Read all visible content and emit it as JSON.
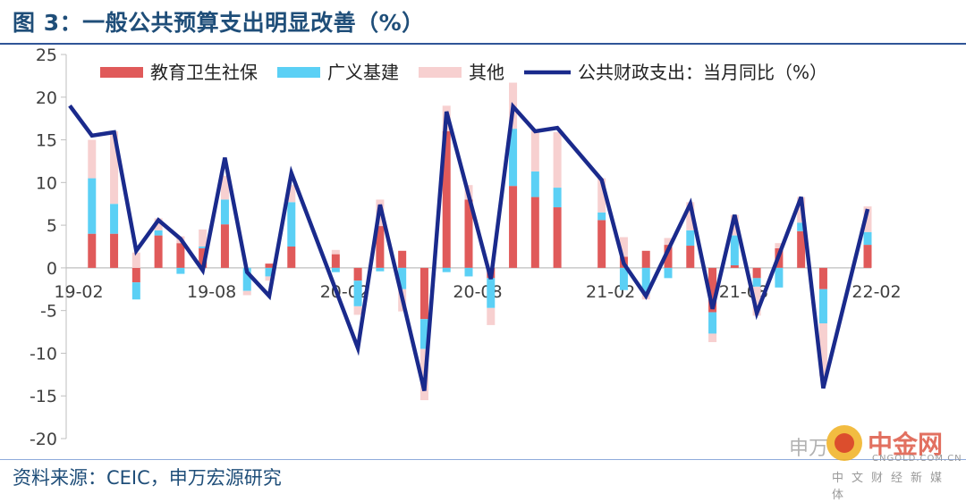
{
  "title": "图 3：一般公共预算支出明显改善（%）",
  "source": "资料来源：CEIC，申万宏源研究",
  "watermark": {
    "prefix": "申万",
    "site": "中金网",
    "site_url": "CNGOLD.COM.CN",
    "site_sub": "中文财经新媒体"
  },
  "colors": {
    "edu": "#e05a5a",
    "infra": "#5bd0f5",
    "other": "#f7d0d0",
    "line": "#1a2a8c",
    "axis": "#bfbfbf",
    "text": "#1f4e79"
  },
  "chart_data": {
    "type": "bar",
    "stacked": true,
    "ylim": [
      -20,
      25
    ],
    "yticks": [
      25,
      20,
      15,
      10,
      5,
      0,
      -5,
      -10,
      -15,
      -20
    ],
    "xtick_labels": [
      "19-02",
      "19-08",
      "20-02",
      "20-08",
      "21-02",
      "21-08",
      "22-02"
    ],
    "xtick_index": [
      0,
      6,
      12,
      18,
      24,
      30,
      36
    ],
    "legend_position": "top",
    "categories": [
      "19-02",
      "19-03",
      "19-04",
      "19-05",
      "19-06",
      "19-07",
      "19-08",
      "19-09",
      "19-10",
      "19-11",
      "19-12",
      "20-01",
      "20-02",
      "20-03",
      "20-04",
      "20-05",
      "20-06",
      "20-07",
      "20-08",
      "20-09",
      "20-10",
      "20-11",
      "20-12",
      "21-01",
      "21-02",
      "21-03",
      "21-04",
      "21-05",
      "21-06",
      "21-07",
      "21-08",
      "21-09",
      "21-10",
      "21-11",
      "21-12",
      "22-01",
      "22-02"
    ],
    "series": [
      {
        "name": "教育卫生社保",
        "kind": "bar",
        "values": [
          null,
          4.0,
          4.0,
          -1.7,
          3.8,
          2.9,
          2.3,
          5.1,
          null,
          0.5,
          2.5,
          null,
          1.6,
          -1.5,
          4.9,
          2.0,
          -6.0,
          16.0,
          8.0,
          -1.2,
          9.6,
          8.3,
          7.1,
          null,
          5.6,
          1.3,
          2.0,
          2.7,
          2.6,
          -5.2,
          0.3,
          -1.2,
          2.3,
          4.3,
          -2.5,
          null,
          2.7
        ]
      },
      {
        "name": "广义基建",
        "kind": "bar",
        "values": [
          null,
          6.5,
          3.5,
          -2.0,
          0.6,
          -0.7,
          0.2,
          2.9,
          -2.7,
          -1.0,
          5.2,
          null,
          -0.5,
          -3.0,
          -0.4,
          -2.5,
          -3.5,
          -0.5,
          -1.0,
          -3.5,
          6.7,
          3.0,
          2.3,
          null,
          0.9,
          -2.6,
          -3.0,
          -1.2,
          1.8,
          -2.5,
          3.5,
          -1.0,
          -2.3,
          1.0,
          -4.0,
          null,
          1.5
        ]
      },
      {
        "name": "其他",
        "kind": "bar",
        "values": [
          null,
          4.5,
          8.5,
          1.8,
          1.4,
          0.8,
          2.0,
          2.8,
          -0.5,
          -0.5,
          2.0,
          null,
          0.5,
          -1.0,
          3.1,
          -2.6,
          -6.0,
          3.0,
          1.7,
          -2.0,
          5.4,
          4.8,
          6.5,
          null,
          4.0,
          2.3,
          -0.7,
          0.8,
          3.3,
          -1.0,
          2.4,
          -3.4,
          0.6,
          3.0,
          -6.2,
          null,
          3.0
        ]
      },
      {
        "name": "公共财政支出：当月同比（%）",
        "kind": "line",
        "values": [
          19.0,
          15.5,
          15.9,
          2.0,
          5.6,
          3.4,
          -0.3,
          12.9,
          -0.5,
          -3.3,
          11.1,
          null,
          null,
          -9.4,
          7.4,
          null,
          -14.4,
          18.3,
          null,
          -1.3,
          18.9,
          16.0,
          16.4,
          null,
          10.3,
          0.5,
          -3.3,
          null,
          7.5,
          -4.8,
          6.2,
          -5.3,
          null,
          8.3,
          -14.1,
          null,
          6.9
        ]
      }
    ]
  }
}
